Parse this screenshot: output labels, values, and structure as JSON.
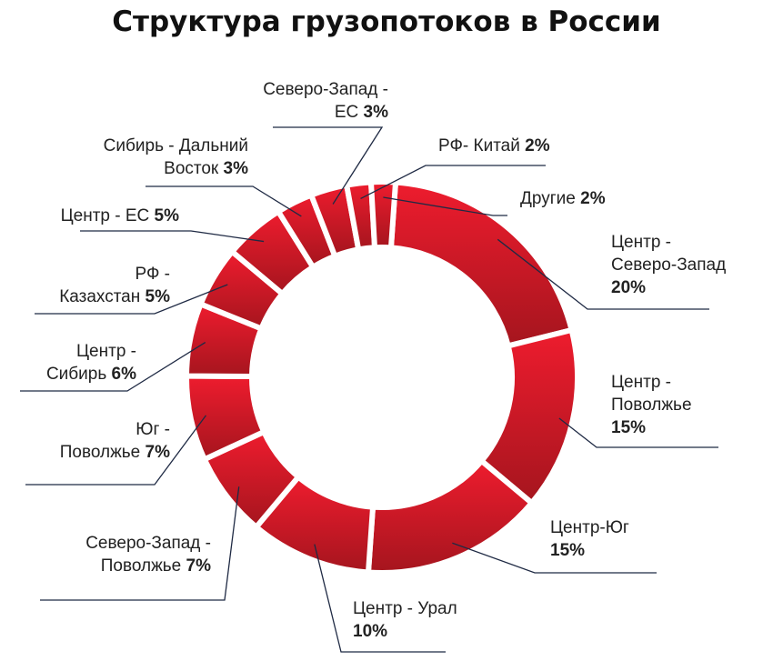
{
  "chart_data": {
    "type": "pie",
    "title": "Структура грузопотоков в России",
    "slices": [
      {
        "label": "Центр - Северо-Запад",
        "value": 20,
        "value_label": "20%"
      },
      {
        "label": "Центр - Поволжье",
        "value": 15,
        "value_label": "15%"
      },
      {
        "label": "Центр-Юг",
        "value": 15,
        "value_label": "15%"
      },
      {
        "label": "Центр - Урал",
        "value": 10,
        "value_label": "10%"
      },
      {
        "label": "Северо-Запад - Поволжье",
        "value": 7,
        "value_label": "7%"
      },
      {
        "label": "Юг - Поволжье",
        "value": 7,
        "value_label": "7%"
      },
      {
        "label": "Центр - Сибирь",
        "value": 6,
        "value_label": "6%"
      },
      {
        "label": "РФ - Казахстан",
        "value": 5,
        "value_label": "5%"
      },
      {
        "label": "Центр - ЕС",
        "value": 5,
        "value_label": "5%"
      },
      {
        "label": "Сибирь - Дальний Восток",
        "value": 3,
        "value_label": "3%"
      },
      {
        "label": "Северо-Запад - ЕС",
        "value": 3,
        "value_label": "3%"
      },
      {
        "label": "РФ- Китай",
        "value": 2,
        "value_label": "2%"
      },
      {
        "label": "Другие",
        "value": 2,
        "value_label": "2%"
      }
    ],
    "display_lines": [
      [
        "Центр -",
        "Северо-Запад"
      ],
      [
        "Центр -",
        "Поволжье"
      ],
      [
        "Центр-Юг"
      ],
      [
        "Центр - Урал"
      ],
      [
        "Северо-Запад -",
        "Поволжье "
      ],
      [
        "Юг -",
        "Поволжье "
      ],
      [
        "Центр -",
        "Сибирь "
      ],
      [
        "РФ -",
        "Казахстан "
      ],
      [
        "Центр - ЕС "
      ],
      [
        "Сибирь - Дальний",
        "Восток "
      ],
      [
        "Северо-Запад -",
        "ЕС "
      ],
      [
        "РФ- Китай "
      ],
      [
        "Другие "
      ]
    ],
    "colors": {
      "outer": "#ee1c2e",
      "inner": "#a5151e",
      "separator": "#ffffff",
      "leader": "#1f2a44"
    },
    "donut": true
  }
}
